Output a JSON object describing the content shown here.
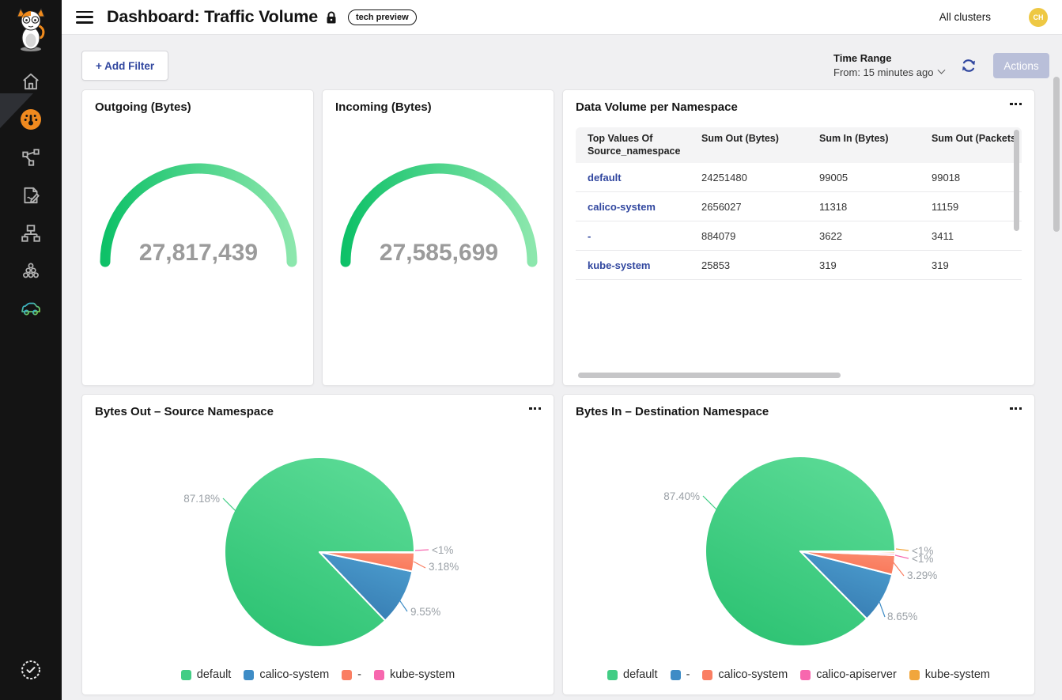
{
  "header": {
    "title": "Dashboard: Traffic Volume",
    "badge": "tech preview",
    "clusters_label": "All clusters",
    "avatar_initials": "CH"
  },
  "toolbar": {
    "add_filter": "+ Add Filter",
    "time_range_label": "Time Range",
    "time_range_value": "From: 15 minutes ago",
    "actions": "Actions"
  },
  "sidebar": {
    "items": [
      "home",
      "dashboards",
      "service-graph",
      "logs",
      "network",
      "clusters",
      "whisker",
      "verified"
    ],
    "active_item": "dashboards"
  },
  "colors": {
    "accent_orange": "#f08a1f",
    "link_blue": "#31479f",
    "green": "#42cd85",
    "blue": "#3e8cc6",
    "salmon": "#fa7e62",
    "pink": "#f767ae",
    "orange": "#f1a63c",
    "avatar_bg": "#eec843",
    "gauge_gradient": [
      "#0ec168",
      "#8ce7ad"
    ]
  },
  "chart_data": [
    {
      "type": "gauge",
      "title": "Outgoing (Bytes)",
      "value": 27817439,
      "display": "27,817,439"
    },
    {
      "type": "gauge",
      "title": "Incoming (Bytes)",
      "value": 27585699,
      "display": "27,585,699"
    },
    {
      "type": "table",
      "title": "Data Volume per Namespace",
      "columns": [
        "Top Values Of Source_namespace",
        "Sum Out (Bytes)",
        "Sum In (Bytes)",
        "Sum Out (Packets)"
      ],
      "rows": [
        [
          "default",
          "24251480",
          "99005",
          "99018"
        ],
        [
          "calico-system",
          "2656027",
          "11318",
          "11159"
        ],
        [
          "-",
          "884079",
          "3622",
          "3411"
        ],
        [
          "kube-system",
          "25853",
          "319",
          "319"
        ]
      ]
    },
    {
      "type": "pie",
      "title": "Bytes Out – Source Namespace",
      "legend_position": "bottom",
      "slices": [
        {
          "name": "default",
          "pct": 87.18,
          "label": "87.18%",
          "color": "green"
        },
        {
          "name": "calico-system",
          "pct": 9.55,
          "label": "9.55%",
          "color": "blue"
        },
        {
          "name": "-",
          "pct": 3.18,
          "label": "3.18%",
          "color": "salmon"
        },
        {
          "name": "kube-system",
          "pct": 0.09,
          "label": "<1%",
          "color": "pink"
        }
      ]
    },
    {
      "type": "pie",
      "title": "Bytes In – Destination Namespace",
      "legend_position": "bottom",
      "slices": [
        {
          "name": "default",
          "pct": 87.4,
          "label": "87.40%",
          "color": "green"
        },
        {
          "name": "-",
          "pct": 8.65,
          "label": "8.65%",
          "color": "blue"
        },
        {
          "name": "calico-system",
          "pct": 3.29,
          "label": "3.29%",
          "color": "salmon"
        },
        {
          "name": "calico-apiserver",
          "pct": 0.35,
          "label": "<1%",
          "color": "pink"
        },
        {
          "name": "kube-system",
          "pct": 0.31,
          "label": "<1%",
          "color": "orange"
        }
      ]
    }
  ]
}
